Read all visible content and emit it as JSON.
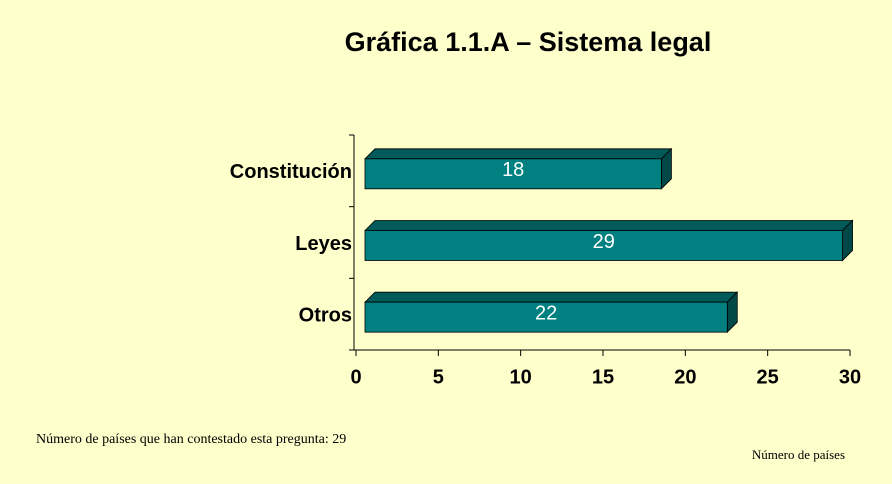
{
  "chart_data": {
    "type": "bar",
    "orientation": "horizontal",
    "title": "Gráfica 1.1.A – Sistema legal",
    "categories": [
      "Constitución",
      "Leyes",
      "Otros"
    ],
    "values": [
      18,
      29,
      22
    ],
    "color": "#008080",
    "xlim": [
      0,
      30
    ],
    "xticks": [
      0,
      5,
      10,
      15,
      20,
      25,
      30
    ],
    "xlabel": "Número de países",
    "note": "Número de países que han contestado esta pregunta: 29"
  }
}
